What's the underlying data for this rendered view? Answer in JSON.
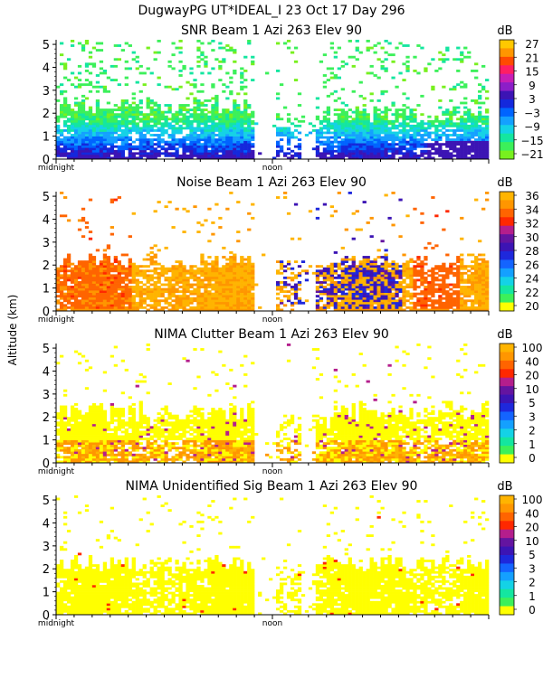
{
  "header": {
    "line1": "DugwayPG UT*IDEAL_I  23 Oct 17 Day 296"
  },
  "yaxis_label": "Altitude (km)",
  "x_tick_labels": [
    "midnight",
    "noon"
  ],
  "unit_label": "dB",
  "chart_data": [
    {
      "type": "heatmap",
      "title": "SNR Beam 1 Azi 263 Elev 90",
      "ylabel": "Altitude (km)",
      "ylim": [
        0,
        5.2
      ],
      "yticks": [
        0,
        1,
        2,
        3,
        4,
        5
      ],
      "xlabels": [
        "midnight",
        "noon"
      ],
      "colorbar": {
        "unit": "dB",
        "labels": [
          "27",
          "21",
          "15",
          "9",
          "3",
          "−3",
          "−9",
          "−15",
          "−21"
        ],
        "colors": [
          "#ffc800",
          "#ff9600",
          "#ff4b00",
          "#ff1e64",
          "#c81eb4",
          "#8c1ec8",
          "#3c14b4",
          "#1428dc",
          "#0064ff",
          "#14a0ff",
          "#14d2e6",
          "#14e6a0",
          "#3cf05a",
          "#78f01e"
        ]
      }
    },
    {
      "type": "heatmap",
      "title": "Noise Beam 1 Azi 263 Elev 90",
      "ylabel": "Altitude (km)",
      "ylim": [
        0,
        5.2
      ],
      "yticks": [
        0,
        1,
        2,
        3,
        4,
        5
      ],
      "xlabels": [
        "midnight",
        "noon"
      ],
      "colorbar": {
        "unit": "dB",
        "labels": [
          "36",
          "34",
          "32",
          "30",
          "28",
          "26",
          "24",
          "22",
          "20"
        ],
        "colors": [
          "#ffb400",
          "#ff9600",
          "#ff6400",
          "#ff2800",
          "#b41e8c",
          "#6414a0",
          "#3c14b4",
          "#1e28dc",
          "#1464ff",
          "#14a0ff",
          "#14d2e6",
          "#14e6a0",
          "#3cf05a",
          "#ffff00"
        ]
      }
    },
    {
      "type": "heatmap",
      "title": "NIMA Clutter Beam 1 Azi 263 Elev 90",
      "ylabel": "Altitude (km)",
      "ylim": [
        0,
        5.2
      ],
      "yticks": [
        0,
        1,
        2,
        3,
        4,
        5
      ],
      "xlabels": [
        "midnight",
        "noon"
      ],
      "colorbar": {
        "unit": "dB",
        "labels": [
          "100",
          "40",
          "20",
          "10",
          "5",
          "3",
          "2",
          "1",
          "0"
        ],
        "colors": [
          "#ffb400",
          "#ff9600",
          "#ff6400",
          "#ff2800",
          "#b41e8c",
          "#6414a0",
          "#3c14b4",
          "#1e28dc",
          "#1464ff",
          "#14a0ff",
          "#14d2e6",
          "#14e6a0",
          "#3cf05a",
          "#ffff00"
        ]
      }
    },
    {
      "type": "heatmap",
      "title": "NIMA Unidentified Sig Beam 1 Azi 263 Elev 90",
      "ylabel": "Altitude (km)",
      "ylim": [
        0,
        5.2
      ],
      "yticks": [
        0,
        1,
        2,
        3,
        4,
        5
      ],
      "xlabels": [
        "midnight",
        "noon"
      ],
      "colorbar": {
        "unit": "dB",
        "labels": [
          "100",
          "40",
          "20",
          "10",
          "5",
          "3",
          "2",
          "1",
          "0"
        ],
        "colors": [
          "#ffb400",
          "#ff9600",
          "#ff6400",
          "#ff2800",
          "#b41e8c",
          "#6414a0",
          "#3c14b4",
          "#1e28dc",
          "#1464ff",
          "#14a0ff",
          "#14d2e6",
          "#14e6a0",
          "#3cf05a",
          "#ffff00"
        ]
      }
    }
  ]
}
